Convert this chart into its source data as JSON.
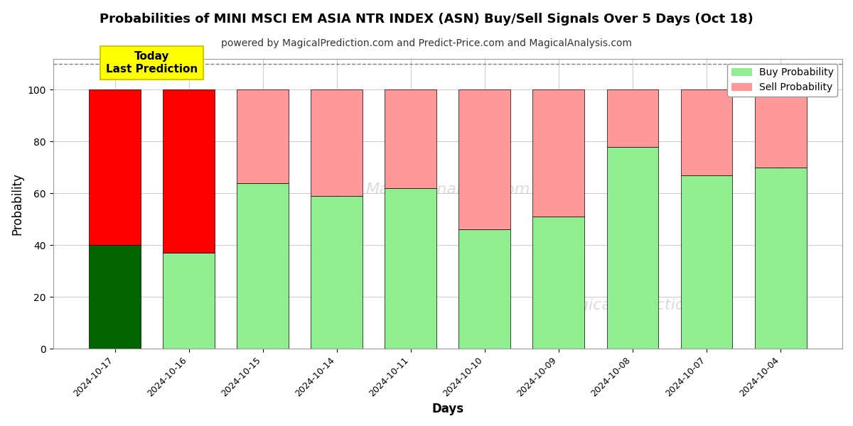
{
  "title": "Probabilities of MINI MSCI EM ASIA NTR INDEX (ASN) Buy/Sell Signals Over 5 Days (Oct 18)",
  "subtitle": "powered by MagicalPrediction.com and Predict-Price.com and MagicalAnalysis.com",
  "xlabel": "Days",
  "ylabel": "Probability",
  "categories": [
    "2024-10-17",
    "2024-10-16",
    "2024-10-15",
    "2024-10-14",
    "2024-10-11",
    "2024-10-10",
    "2024-10-09",
    "2024-10-08",
    "2024-10-07",
    "2024-10-04"
  ],
  "buy_values": [
    40,
    37,
    64,
    59,
    62,
    46,
    51,
    78,
    67,
    70
  ],
  "sell_values": [
    60,
    63,
    36,
    41,
    38,
    54,
    49,
    22,
    33,
    30
  ],
  "buy_colors": [
    "#006400",
    "#90EE90",
    "#90EE90",
    "#90EE90",
    "#90EE90",
    "#90EE90",
    "#90EE90",
    "#90EE90",
    "#90EE90",
    "#90EE90"
  ],
  "sell_colors": [
    "#FF0000",
    "#FF0000",
    "#FF9999",
    "#FF9999",
    "#FF9999",
    "#FF9999",
    "#FF9999",
    "#FF9999",
    "#FF9999",
    "#FF9999"
  ],
  "ylim": [
    0,
    112
  ],
  "yticks": [
    0,
    20,
    40,
    60,
    80,
    100
  ],
  "dashed_line_y": 110,
  "legend_buy_color": "#90EE90",
  "legend_sell_color": "#FF9999",
  "annotation_text": "Today\nLast Prediction",
  "annotation_bg_color": "#FFFF00",
  "bg_color": "#FFFFFF",
  "grid_color": "#CCCCCC"
}
